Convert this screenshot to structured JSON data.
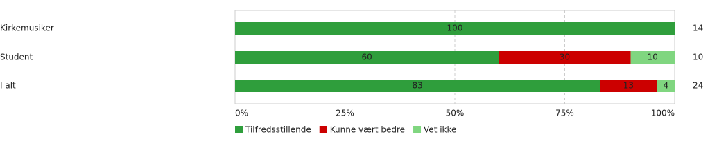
{
  "chart_data": {
    "type": "stacked-bar-horizontal",
    "categories": [
      "Kirkemusiker",
      "Student",
      "I alt"
    ],
    "series": [
      {
        "name": "Tilfredsstillende",
        "color": "#2f9e3c",
        "values": [
          100,
          60,
          83
        ]
      },
      {
        "name": "Kunne vært bedre",
        "color": "#cc0000",
        "values": [
          null,
          30,
          13
        ]
      },
      {
        "name": "Vet ikke",
        "color": "#80d680",
        "values": [
          null,
          10,
          4
        ]
      }
    ],
    "counts": [
      14,
      10,
      24
    ],
    "xlim": [
      0,
      100
    ],
    "xticks": [
      {
        "value": 0,
        "label": "0%"
      },
      {
        "value": 25,
        "label": "25%"
      },
      {
        "value": 50,
        "label": "50%"
      },
      {
        "value": 75,
        "label": "75%"
      },
      {
        "value": 100,
        "label": "100%"
      }
    ],
    "grid": true,
    "legend": "bottom"
  }
}
